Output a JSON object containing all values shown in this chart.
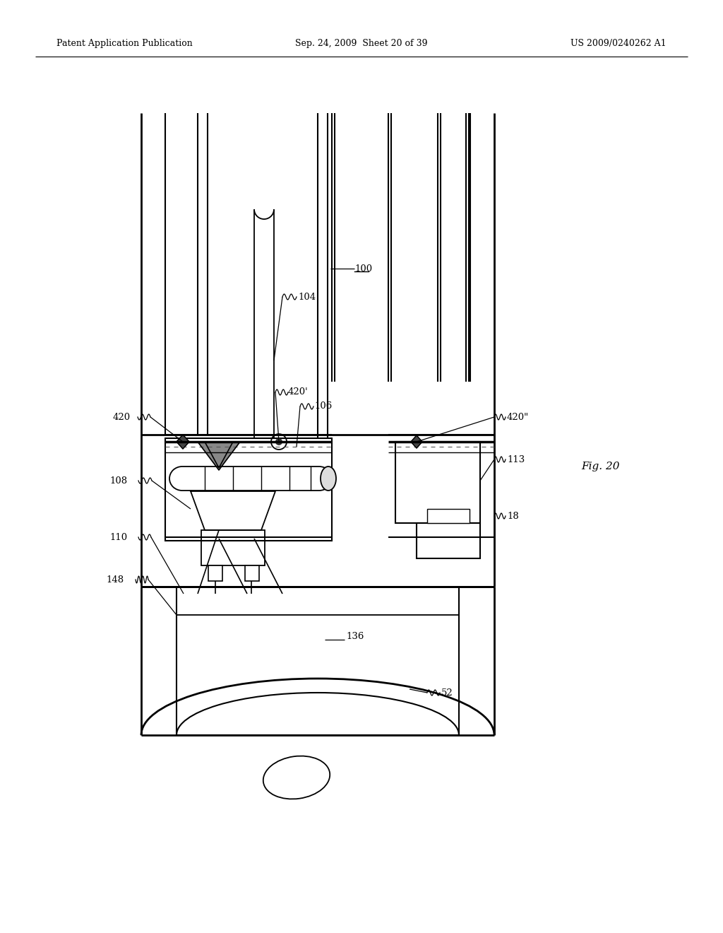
{
  "bg_color": "#ffffff",
  "line_color": "#000000",
  "header_left": "Patent Application Publication",
  "header_mid": "Sep. 24, 2009  Sheet 20 of 39",
  "header_right": "US 2009/0240262 A1",
  "fig_label": "Fig. 20"
}
